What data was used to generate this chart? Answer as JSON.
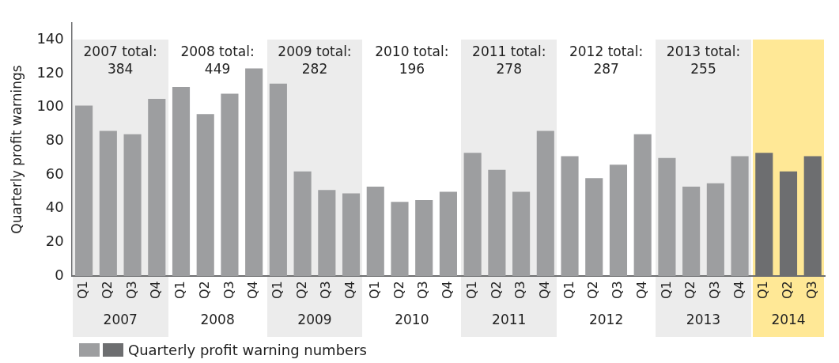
{
  "chart_data": {
    "type": "bar",
    "ylabel": "Quarterly profit warnings",
    "categories": [
      "Q1",
      "Q2",
      "Q3",
      "Q4",
      "Q1",
      "Q2",
      "Q3",
      "Q4",
      "Q1",
      "Q2",
      "Q3",
      "Q4",
      "Q1",
      "Q2",
      "Q3",
      "Q4",
      "Q1",
      "Q2",
      "Q3",
      "Q4",
      "Q1",
      "Q2",
      "Q3",
      "Q4",
      "Q1",
      "Q2",
      "Q3",
      "Q4",
      "Q1",
      "Q2",
      "Q3"
    ],
    "series": [
      {
        "name": "Quarterly profit warning numbers",
        "values": [
          101,
          86,
          84,
          105,
          112,
          96,
          108,
          123,
          114,
          62,
          51,
          49,
          53,
          44,
          45,
          50,
          73,
          63,
          50,
          86,
          71,
          58,
          66,
          84,
          70,
          53,
          55,
          71,
          73,
          62,
          71
        ],
        "colors": [
          "#9d9ea0",
          "#9d9ea0",
          "#9d9ea0",
          "#9d9ea0",
          "#9d9ea0",
          "#9d9ea0",
          "#9d9ea0",
          "#9d9ea0",
          "#9d9ea0",
          "#9d9ea0",
          "#9d9ea0",
          "#9d9ea0",
          "#9d9ea0",
          "#9d9ea0",
          "#9d9ea0",
          "#9d9ea0",
          "#9d9ea0",
          "#9d9ea0",
          "#9d9ea0",
          "#9d9ea0",
          "#9d9ea0",
          "#9d9ea0",
          "#9d9ea0",
          "#9d9ea0",
          "#9d9ea0",
          "#9d9ea0",
          "#9d9ea0",
          "#9d9ea0",
          "#6d6e70",
          "#6d6e70",
          "#6d6e70"
        ]
      }
    ],
    "ylim": [
      0,
      150
    ],
    "yticks": [
      0,
      20,
      40,
      60,
      80,
      100,
      120,
      140
    ],
    "grid": false,
    "legend": "bottom left",
    "annotations": [
      "2007 total:\n384",
      "2008 total:\n449",
      "2009 total:\n282",
      "2010 total:\n196",
      "2011 total:\n278",
      "2012 total:\n287",
      "2013 total:\n255",
      "2007",
      "2008",
      "2009",
      "2010",
      "2011",
      "2012",
      "2013",
      "2014"
    ]
  }
}
